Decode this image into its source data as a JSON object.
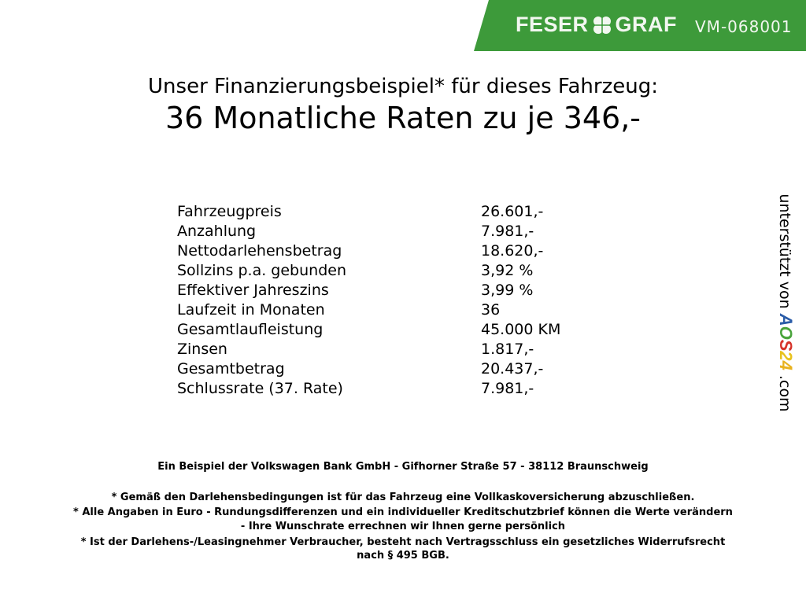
{
  "header": {
    "brand": "FESER",
    "brand2": "GRAF",
    "vehicle_code": "VM-068001",
    "color": "#3d9a3a"
  },
  "title": {
    "line1": "Unser Finanzierungsbeispiel* für dieses Fahrzeug:",
    "line2": "36 Monatliche Raten zu je 346,-"
  },
  "rows": [
    {
      "label": "Fahrzeugpreis",
      "value": "26.601,-"
    },
    {
      "label": "Anzahlung",
      "value": "7.981,-"
    },
    {
      "label": "Nettodarlehensbetrag",
      "value": "18.620,-"
    },
    {
      "label": "Sollzins p.a. gebunden",
      "value": "3,92 %"
    },
    {
      "label": "Effektiver Jahreszins",
      "value": "3,99 %"
    },
    {
      "label": "Laufzeit in Monaten",
      "value": "36"
    },
    {
      "label": "Gesamtlaufleistung",
      "value": "45.000 KM"
    },
    {
      "label": "Zinsen",
      "value": "1.817,-"
    },
    {
      "label": "Gesamtbetrag",
      "value": "20.437,-"
    },
    {
      "label": "Schlussrate (37. Rate)",
      "value": "7.981,-"
    }
  ],
  "footer": {
    "bank": "Ein Beispiel der Volkswagen Bank GmbH - Gifhorner Straße 57 - 38112 Braunschweig",
    "note1": "* Gemäß den Darlehensbedingungen ist für das Fahrzeug eine Vollkaskoversicherung abzuschließen.",
    "note2a": "* Alle Angaben in Euro - Rundungsdifferenzen und ein individueller Kreditschutzbrief können die Werte verändern",
    "note2b": "- Ihre Wunschrate errechnen wir Ihnen gerne persönlich",
    "note3a": "* Ist der Darlehens-/Leasingnehmer Verbraucher, besteht nach Vertragsschluss ein gesetzliches Widerrufsrecht",
    "note3b": "nach § 495 BGB."
  },
  "side": {
    "prefix": "unterstützt von",
    "logo": "AOS24",
    "suffix": ".com"
  }
}
